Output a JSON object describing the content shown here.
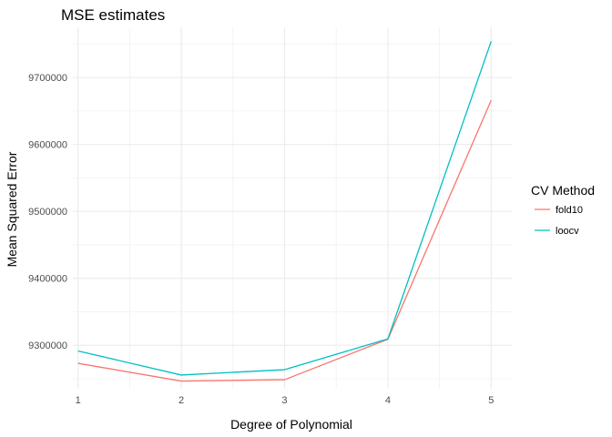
{
  "chart_data": {
    "type": "line",
    "title": "MSE estimates",
    "xlabel": "Degree of Polynomial",
    "ylabel": "Mean Squared Error",
    "x": [
      1,
      2,
      3,
      4,
      5
    ],
    "x_ticks": [
      "1",
      "2",
      "3",
      "4",
      "5"
    ],
    "xlim": [
      0.95,
      5.2
    ],
    "y_ticks": [
      9300000,
      9400000,
      9500000,
      9600000,
      9700000
    ],
    "y_tick_labels": [
      "9300000",
      "9400000",
      "9500000",
      "9600000",
      "9700000"
    ],
    "ylim": [
      9235000,
      9775000
    ],
    "grid": true,
    "legend": {
      "title": "CV Method",
      "placement": "right"
    },
    "series": [
      {
        "name": "fold10",
        "color": "#F8766D",
        "values": [
          9273000,
          9246500,
          9248500,
          9309000,
          9666000
        ]
      },
      {
        "name": "loocv",
        "color": "#00BFC4",
        "values": [
          9291500,
          9255500,
          9263500,
          9309500,
          9754000
        ]
      }
    ]
  }
}
